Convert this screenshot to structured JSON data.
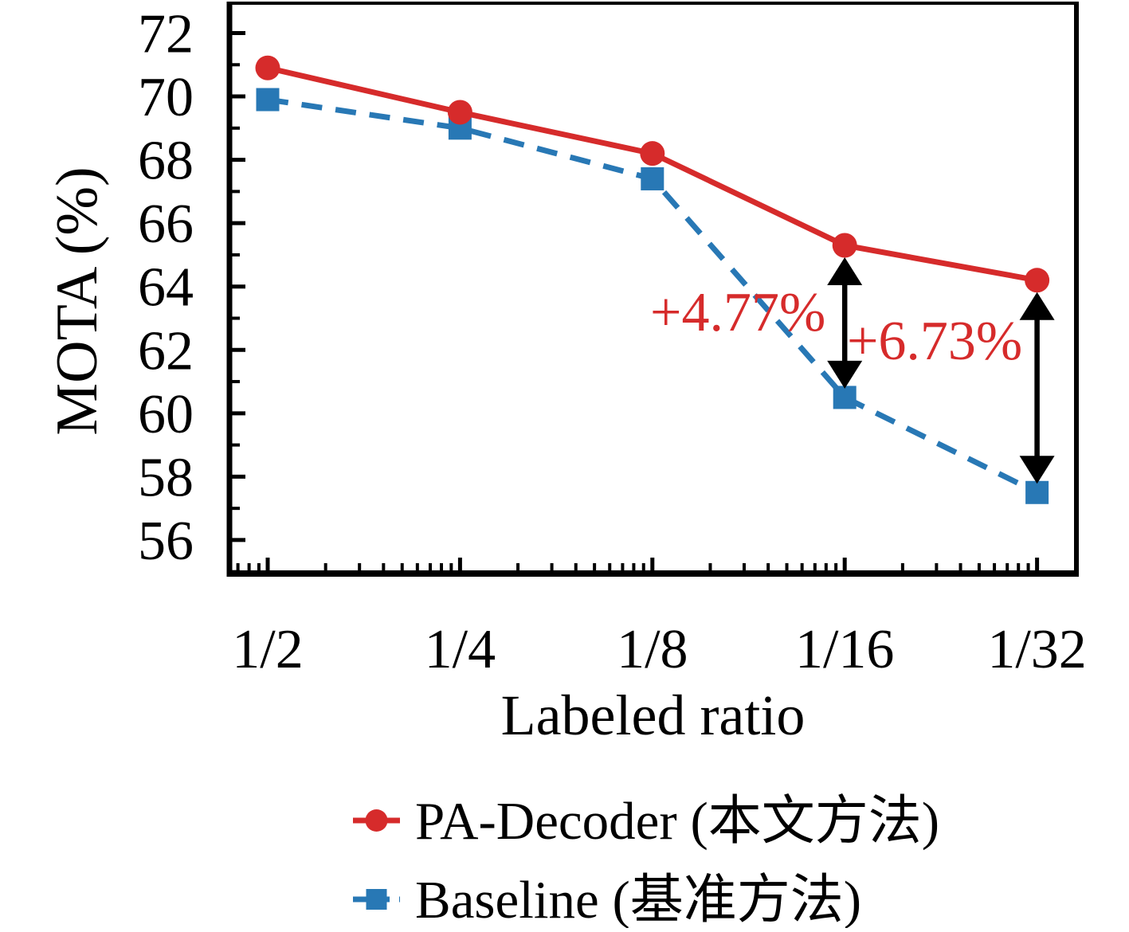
{
  "figure": {
    "background": "#ffffff",
    "axis_color": "#000000"
  },
  "chart_data": {
    "type": "line",
    "x_scale": "log",
    "categories": [
      "1/2",
      "1/4",
      "1/8",
      "1/16",
      "1/32"
    ],
    "xlabel": "Labeled ratio",
    "ylabel": "MOTA (%)",
    "ylim": [
      54.95,
      72.9
    ],
    "yticks": [
      72,
      70,
      68,
      66,
      64,
      62,
      60,
      58,
      56
    ],
    "grid": false,
    "legend_position": "below-axis",
    "series": [
      {
        "name": "PA-Decoder (本文方法)",
        "color": "#d62b2b",
        "line_style": "solid",
        "marker": "circle",
        "values": [
          70.9,
          69.5,
          68.2,
          65.3,
          64.2
        ]
      },
      {
        "name": "Baseline (基准方法)",
        "color": "#2878b5",
        "line_style": "dashed",
        "marker": "square",
        "values": [
          69.9,
          69.0,
          67.4,
          60.5,
          57.5
        ]
      }
    ],
    "annotations": [
      {
        "text": "+4.77%",
        "color": "#d62b2b",
        "at_category": "1/16",
        "arrow_from_value": 65.3,
        "arrow_to_value": 60.5
      },
      {
        "text": "+6.73%",
        "color": "#d62b2b",
        "at_category": "1/32",
        "arrow_from_value": 64.2,
        "arrow_to_value": 57.5
      }
    ]
  }
}
